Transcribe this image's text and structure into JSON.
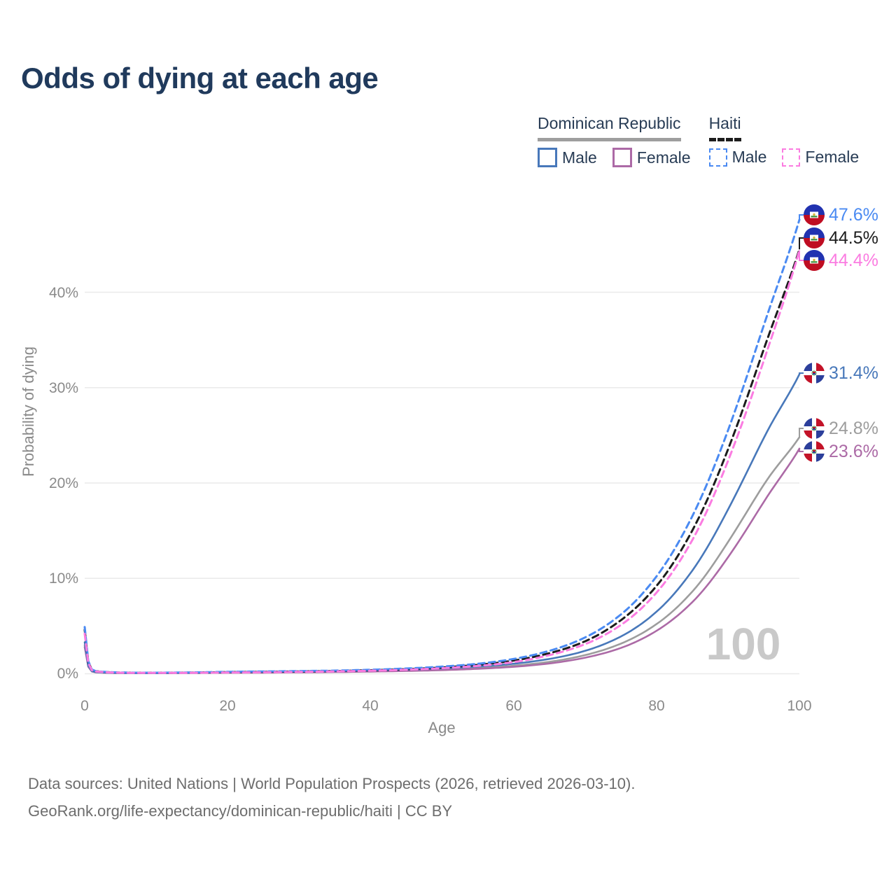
{
  "title": "Odds of dying at each age",
  "legend": {
    "groups": [
      {
        "label": "Dominican Republic",
        "line_style": "solid",
        "rule_color": "#9e9e9e",
        "items": [
          {
            "label": "Male",
            "color": "#4878ba"
          },
          {
            "label": "Female",
            "color": "#ac6aa6"
          }
        ]
      },
      {
        "label": "Haiti",
        "line_style": "dashed",
        "rule_color": "#1c1c1c",
        "items": [
          {
            "label": "Male",
            "color": "#4a8af2"
          },
          {
            "label": "Female",
            "color": "#fb7ce1"
          }
        ]
      }
    ]
  },
  "chart_data": {
    "type": "line",
    "title": "Odds of dying at each age",
    "xlabel": "Age",
    "ylabel": "Probability of dying",
    "xlim": [
      0,
      100
    ],
    "ylim": [
      0,
      48
    ],
    "grid": true,
    "x_tick_labels": [
      "0",
      "20",
      "40",
      "60",
      "80",
      "100"
    ],
    "y_tick_labels": [
      "0%",
      "10%",
      "20%",
      "30%",
      "40%"
    ],
    "watermark": "100",
    "x": [
      0,
      1,
      2,
      5,
      10,
      15,
      20,
      25,
      30,
      35,
      40,
      45,
      50,
      55,
      60,
      65,
      70,
      75,
      80,
      85,
      90,
      95,
      100
    ],
    "series": [
      {
        "name": "Haiti Male",
        "country": "Haiti",
        "color": "#4a8af2",
        "dashed": true,
        "flag": "haiti",
        "end_label": "47.6%",
        "values": [
          4.9,
          0.45,
          0.25,
          0.13,
          0.11,
          0.14,
          0.2,
          0.24,
          0.28,
          0.33,
          0.42,
          0.55,
          0.75,
          1.05,
          1.55,
          2.4,
          3.8,
          6.2,
          10.2,
          16.5,
          25.5,
          36.5,
          47.6
        ]
      },
      {
        "name": "Haiti (both sexes)",
        "country": "Haiti",
        "color": "#1c1c1c",
        "dashed": true,
        "flag": "haiti",
        "end_label": "44.5%",
        "values": [
          4.6,
          0.42,
          0.23,
          0.12,
          0.1,
          0.12,
          0.17,
          0.2,
          0.24,
          0.29,
          0.37,
          0.48,
          0.66,
          0.93,
          1.38,
          2.15,
          3.4,
          5.6,
          9.2,
          15.0,
          23.5,
          34.0,
          44.5
        ]
      },
      {
        "name": "Haiti Female",
        "country": "Haiti",
        "color": "#fb7ce1",
        "dashed": true,
        "flag": "haiti",
        "end_label": "44.4%",
        "values": [
          4.2,
          0.38,
          0.21,
          0.11,
          0.09,
          0.1,
          0.13,
          0.16,
          0.2,
          0.25,
          0.32,
          0.42,
          0.58,
          0.82,
          1.22,
          1.95,
          3.1,
          5.1,
          8.5,
          14.0,
          22.3,
          32.8,
          44.4
        ]
      },
      {
        "name": "Dominican Republic Male",
        "country": "Dominican Republic",
        "color": "#4878ba",
        "dashed": false,
        "flag": "dominican-republic",
        "end_label": "31.4%",
        "values": [
          3.3,
          0.28,
          0.16,
          0.09,
          0.08,
          0.12,
          0.17,
          0.2,
          0.23,
          0.27,
          0.33,
          0.42,
          0.55,
          0.75,
          1.05,
          1.55,
          2.4,
          3.9,
          6.5,
          10.8,
          17.2,
          24.7,
          31.4
        ]
      },
      {
        "name": "Dominican Republic (both sexes)",
        "country": "Dominican Republic",
        "color": "#9d9d9d",
        "dashed": false,
        "flag": "dominican-republic",
        "end_label": "24.8%",
        "values": [
          3.0,
          0.26,
          0.14,
          0.08,
          0.07,
          0.1,
          0.14,
          0.16,
          0.19,
          0.22,
          0.27,
          0.34,
          0.44,
          0.6,
          0.84,
          1.25,
          1.95,
          3.15,
          5.2,
          8.6,
          13.8,
          19.8,
          24.8
        ]
      },
      {
        "name": "Dominican Republic Female",
        "country": "Dominican Republic",
        "color": "#ac6aa6",
        "dashed": false,
        "flag": "dominican-republic",
        "end_label": "23.6%",
        "values": [
          2.8,
          0.24,
          0.13,
          0.07,
          0.06,
          0.08,
          0.1,
          0.12,
          0.15,
          0.18,
          0.23,
          0.29,
          0.38,
          0.52,
          0.73,
          1.08,
          1.68,
          2.7,
          4.5,
          7.5,
          12.2,
          18.0,
          23.6
        ]
      }
    ]
  },
  "footer": {
    "line1": "Data sources: United Nations | World Population Prospects (2026, retrieved 2026-03-10).",
    "line2": "GeoRank.org/life-expectancy/dominican-republic/haiti | CC BY"
  }
}
